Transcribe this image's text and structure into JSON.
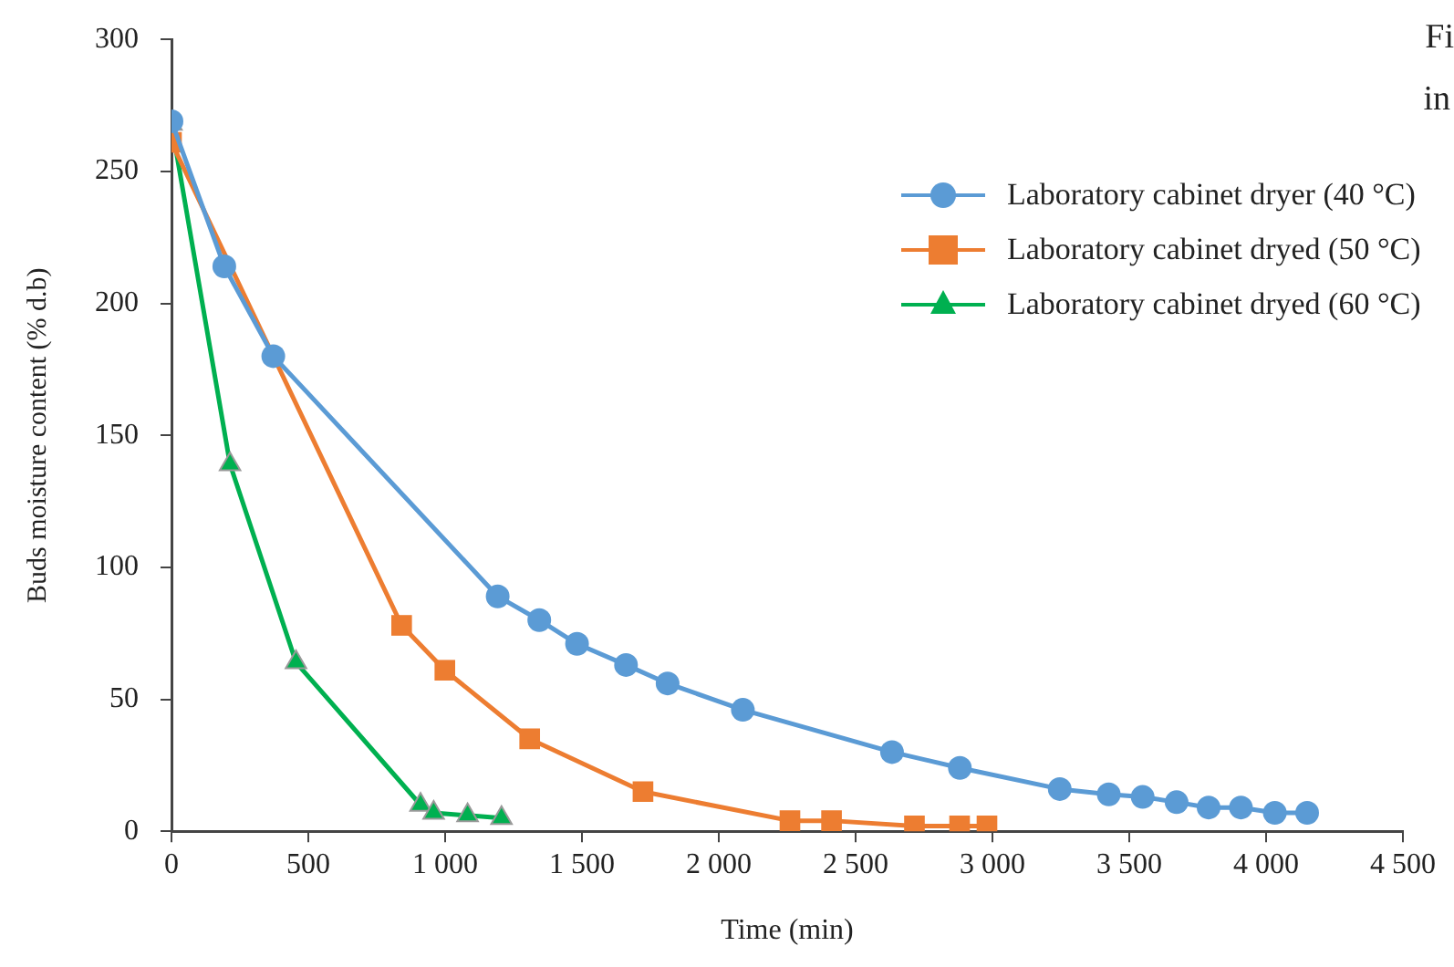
{
  "chart_data": {
    "type": "line",
    "xlabel": "Time (min)",
    "ylabel": "Buds moisture content (% d.b)",
    "xlim": [
      0,
      4500
    ],
    "xticks": [
      0,
      500,
      {
        "value": 1000,
        "label": "1 000"
      },
      {
        "value": 1500,
        "label": "1 500"
      },
      {
        "value": 2000,
        "label": "2 000"
      },
      {
        "value": 2500,
        "label": "2 500"
      },
      {
        "value": 3000,
        "label": "3 000"
      },
      {
        "value": 3500,
        "label": "3 500"
      },
      {
        "value": 4000,
        "label": "4 000"
      },
      {
        "value": 4500,
        "label": "4 500"
      }
    ],
    "ylim": [
      0,
      300
    ],
    "yticks": [
      0,
      50,
      100,
      150,
      200,
      250,
      300
    ],
    "grid": false,
    "legend": "top right",
    "annotations": [
      "Fi",
      "in"
    ],
    "series": [
      {
        "name": "Laboratory cabinet dryer (40 °C)",
        "color": "#5b9bd5",
        "marker": "circle",
        "x": [
          0,
          193,
          372,
          1192,
          1344,
          1482,
          1661,
          1813,
          2088,
          2633,
          2881,
          3246,
          3425,
          3549,
          3673,
          3790,
          3908,
          4032,
          4150
        ],
        "values": [
          269,
          214,
          180,
          89,
          80,
          71,
          63,
          56,
          46,
          30,
          24,
          16,
          14,
          13,
          11,
          9,
          9,
          7,
          7
        ]
      },
      {
        "name": "Laboratory cabinet dryed (50 °C)",
        "color": "#ed7d31",
        "marker": "square",
        "x": [
          0,
          841,
          999,
          1309,
          1723,
          2260,
          2412,
          2715,
          2880,
          2980
        ],
        "values": [
          261,
          78,
          61,
          35,
          15,
          4,
          4,
          2,
          2,
          2
        ]
      },
      {
        "name": "Laboratory cabinet dryed (60 °C)",
        "color": "#00b050",
        "marker": "triangle",
        "x": [
          0,
          214,
          455,
          910,
          958,
          1082,
          1206
        ],
        "values": [
          268,
          139,
          64,
          10,
          7,
          6,
          5
        ]
      }
    ]
  }
}
